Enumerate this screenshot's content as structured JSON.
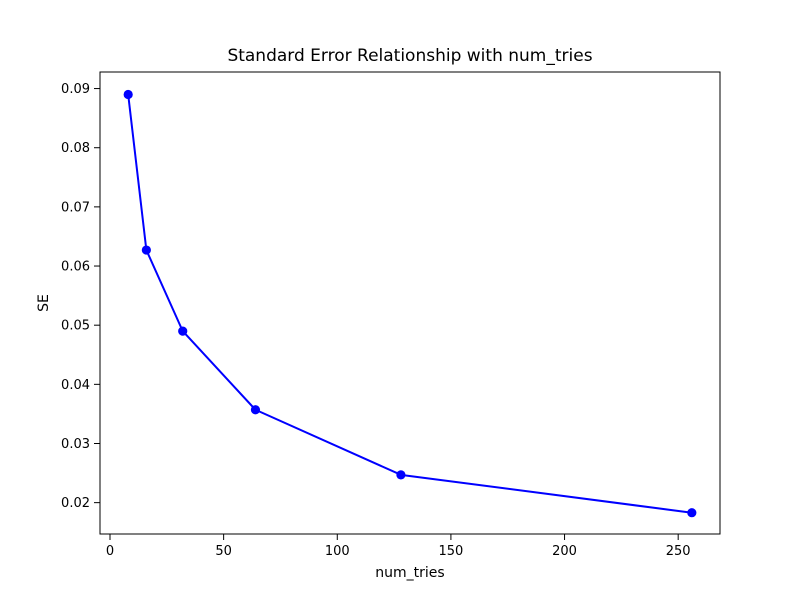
{
  "figure": {
    "background": "#ffffff",
    "text_color": "#000000",
    "spine_color": "#000000"
  },
  "chart_data": {
    "type": "line",
    "title": "Standard Error Relationship with num_tries",
    "xlabel": "num_tries",
    "ylabel": "SE",
    "x": [
      8,
      16,
      32,
      64,
      128,
      256
    ],
    "y": [
      0.089,
      0.0627,
      0.049,
      0.0357,
      0.0247,
      0.0183
    ],
    "series": [
      {
        "name": "SE",
        "color": "#0000ff",
        "marker": "circle",
        "marker_radius": 4.6,
        "line_width": 2
      }
    ],
    "xlim": [
      -4.4,
      268.4
    ],
    "ylim": [
      0.0147,
      0.0928
    ],
    "xticks": [
      0,
      50,
      100,
      150,
      200,
      250
    ],
    "yticks": [
      0.02,
      0.03,
      0.04,
      0.05,
      0.06,
      0.07,
      0.08,
      0.09
    ],
    "ytick_decimals": 2,
    "grid": false,
    "legend_position": "none"
  }
}
